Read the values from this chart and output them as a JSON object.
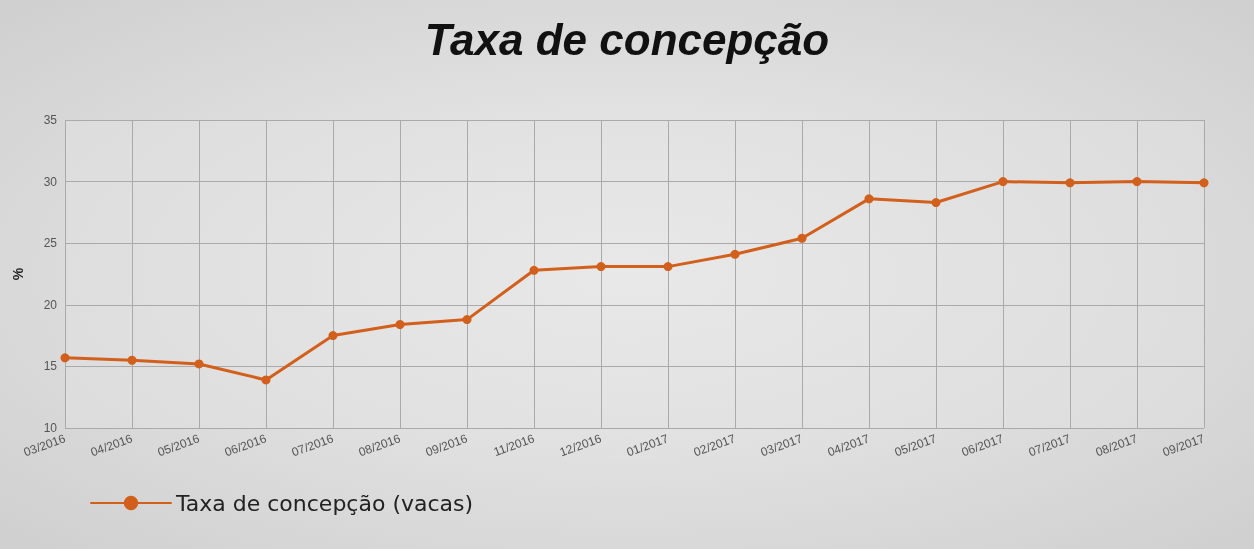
{
  "chart_data": {
    "type": "line",
    "title": "Taxa de concepção",
    "ylabel": "%",
    "categories": [
      "03/2016",
      "04/2016",
      "05/2016",
      "06/2016",
      "07/2016",
      "08/2016",
      "09/2016",
      "11/2016",
      "12/2016",
      "01/2017",
      "02/2017",
      "03/2017",
      "04/2017",
      "05/2017",
      "06/2017",
      "07/2017",
      "08/2017",
      "09/2017"
    ],
    "series": [
      {
        "name": "Taxa de concepção (vacas)",
        "color": "#d2601c",
        "values": [
          15.7,
          15.5,
          15.2,
          13.9,
          17.5,
          18.4,
          18.8,
          22.8,
          23.1,
          23.1,
          24.1,
          25.4,
          28.6,
          28.3,
          30.0,
          29.9,
          30.0,
          29.9
        ]
      }
    ],
    "ylim": [
      10,
      35
    ],
    "yticks": [
      10,
      15,
      20,
      25,
      30,
      35
    ],
    "grid": true,
    "legend": "bottom left",
    "marker": "circle",
    "line_style": "solid"
  }
}
